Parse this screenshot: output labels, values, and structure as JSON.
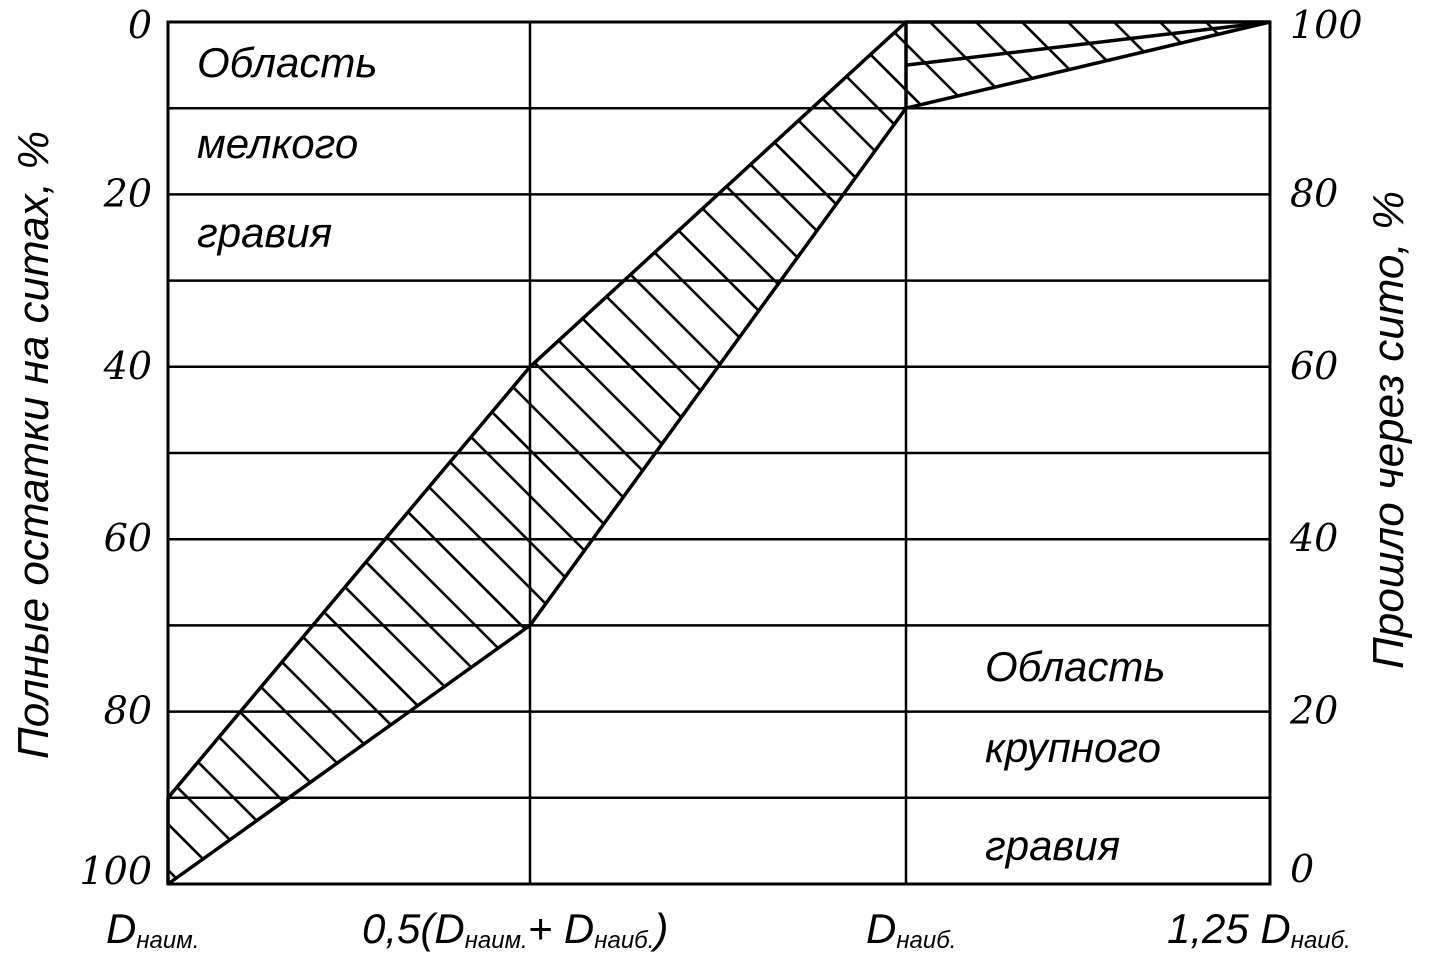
{
  "chart_data": {
    "type": "area",
    "left_axis": {
      "title": "Полные остатки на ситах, %",
      "ticks": [
        "0",
        "20",
        "40",
        "60",
        "80",
        "100"
      ],
      "range": [
        0,
        100
      ]
    },
    "right_axis": {
      "title": "Прошло через сито, %",
      "ticks": [
        "100",
        "80",
        "60",
        "40",
        "20",
        "0"
      ],
      "range": [
        0,
        100
      ]
    },
    "x_categories": [
      {
        "id": "dmin",
        "main": "D",
        "sub": "наим."
      },
      {
        "id": "dmid",
        "prefix": "0,5(D",
        "sub1": "наим.",
        "mid": "+ D",
        "sub2": "наиб.",
        "suffix": ")"
      },
      {
        "id": "dmax",
        "main": "D",
        "sub": "наиб."
      },
      {
        "id": "d125",
        "prefix": "1,25 D",
        "sub": "наиб."
      }
    ],
    "x_positions": [
      0,
      1,
      2,
      3
    ],
    "upper_boundary": {
      "x": [
        0,
        1,
        2,
        3
      ],
      "y_residue": [
        90,
        40,
        0,
        0
      ]
    },
    "lower_boundary": {
      "x": [
        0,
        1,
        2,
        3
      ],
      "y_residue": [
        100,
        70,
        10,
        0
      ]
    },
    "inner_line_top_segment": {
      "x": [
        2,
        3
      ],
      "y_residue": [
        5,
        0
      ]
    },
    "gridlines_residue": [
      10,
      20,
      30,
      40,
      50,
      60,
      70,
      80,
      90
    ],
    "annotations": {
      "fine_gravel": [
        "Область",
        "мелкого",
        "гравия"
      ],
      "coarse_gravel": [
        "Область",
        "крупного",
        "гравия"
      ]
    }
  }
}
